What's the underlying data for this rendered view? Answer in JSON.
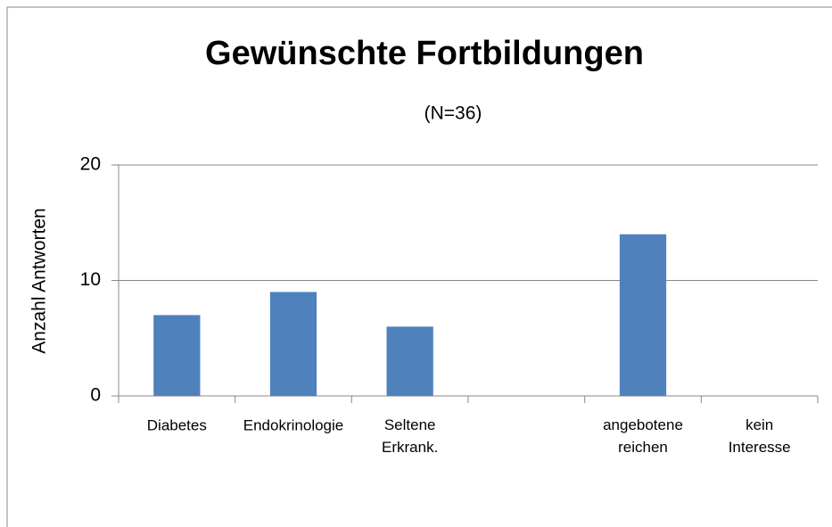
{
  "chart_data": {
    "type": "bar",
    "title": "Gewünschte Fortbildungen",
    "subtitle": "(N=36)",
    "y_label": "Anzahl Antworten",
    "categories": [
      "Diabetes",
      "Endokrinologie",
      "Seltene\nErkrank.",
      null,
      "angebotene\nreichen",
      "kein\nInteresse"
    ],
    "values": [
      7,
      9,
      6,
      0,
      14,
      0
    ],
    "color": "#4f81bd",
    "ylim": [
      0,
      20
    ],
    "yticks": [
      0,
      10,
      20
    ],
    "grid": true
  }
}
